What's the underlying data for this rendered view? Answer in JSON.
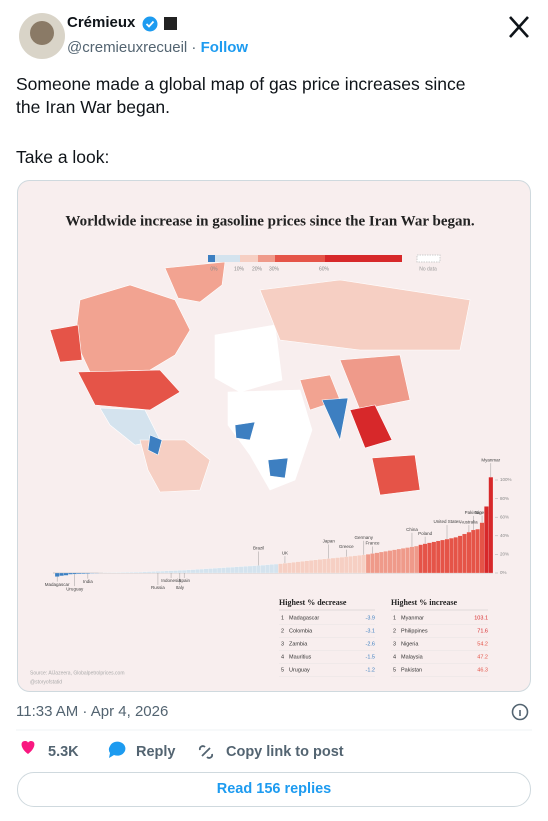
{
  "author": {
    "name": "Crémieux",
    "handle": "@cremieuxrecueil",
    "follow": "Follow"
  },
  "post": {
    "paragraphs": [
      [
        "Someone made a global map of gas price increases since",
        "the Iran War began."
      ],
      [
        "Take a look:"
      ]
    ]
  },
  "chart_data": {
    "type": "bar",
    "title": "Worldwide increase in gasoline prices since the Iran War began.",
    "legend": {
      "items": [
        {
          "value": 0,
          "label": "0%"
        },
        {
          "value": 10,
          "label": "10%"
        },
        {
          "value": 20,
          "label": "20%"
        },
        {
          "value": 30,
          "label": "30%"
        },
        {
          "value": 60,
          "label": "60%"
        }
      ],
      "no_data": "No data"
    },
    "bin_colors": [
      "#3d7fc1",
      "#d4e3ee",
      "#f6cfc3",
      "#ef9a8a",
      "#e55448",
      "#d7282a"
    ],
    "categories": [
      "Madagascar",
      null,
      null,
      null,
      "Uruguay",
      null,
      null,
      "India",
      null,
      null,
      null,
      null,
      null,
      null,
      null,
      null,
      null,
      null,
      null,
      null,
      null,
      null,
      null,
      "Russia",
      null,
      null,
      "Indonesia",
      null,
      "Italy",
      "Spain",
      null,
      null,
      null,
      null,
      null,
      null,
      null,
      null,
      null,
      null,
      null,
      null,
      null,
      null,
      null,
      null,
      "Brazil",
      null,
      null,
      null,
      null,
      null,
      "UK",
      null,
      null,
      null,
      null,
      null,
      null,
      null,
      null,
      null,
      "Japan",
      null,
      null,
      null,
      "Greece",
      null,
      null,
      null,
      "Germany",
      null,
      "France",
      null,
      null,
      null,
      null,
      null,
      null,
      null,
      null,
      "China",
      null,
      null,
      "Poland",
      null,
      null,
      null,
      null,
      "United States",
      null,
      null,
      null,
      null,
      "Australia",
      "Pakistan",
      null,
      "Nigeria",
      null,
      "Myanmar"
    ],
    "values": [
      -3.9,
      -3.1,
      -2.6,
      -1.5,
      -1.2,
      -1.0,
      -0.9,
      -0.7,
      -0.5,
      -0.3,
      0.1,
      0.2,
      0.3,
      0.4,
      0.5,
      0.6,
      0.7,
      0.8,
      0.9,
      1.0,
      1.2,
      1.4,
      1.6,
      1.8,
      2.0,
      2.2,
      2.4,
      2.6,
      2.8,
      3.0,
      3.3,
      3.6,
      3.9,
      4.2,
      4.5,
      4.8,
      5.1,
      5.4,
      5.7,
      6.0,
      6.3,
      6.6,
      6.9,
      7.2,
      7.5,
      7.8,
      8.1,
      8.4,
      8.8,
      9.2,
      9.6,
      10.1,
      10.6,
      11.1,
      11.6,
      12.1,
      12.6,
      13.1,
      13.6,
      14.1,
      14.6,
      15.1,
      15.6,
      16.1,
      16.6,
      17.1,
      17.6,
      18.1,
      18.6,
      19.1,
      19.6,
      20.2,
      21,
      21.8,
      22.6,
      23.4,
      24.2,
      25,
      25.8,
      26.6,
      27.4,
      28.2,
      29,
      30.5,
      31.5,
      32.5,
      33.5,
      34.5,
      35.5,
      36.5,
      37.5,
      38.5,
      40,
      42,
      44,
      46.3,
      47.2,
      54.2,
      71.6,
      103.1
    ],
    "ylim": [
      -5,
      105
    ],
    "yticks": [
      {
        "value": 0,
        "label": "0%"
      },
      {
        "value": 20,
        "label": "20%"
      },
      {
        "value": 40,
        "label": "40%"
      },
      {
        "value": 60,
        "label": "60%"
      },
      {
        "value": 80,
        "label": "80%"
      },
      {
        "value": 100,
        "label": "100%"
      }
    ]
  },
  "tables": [
    {
      "title": "Highest % decrease",
      "rows": [
        [
          "1",
          "Madagascar",
          -3.9
        ],
        [
          "2",
          "Colombia",
          -3.1
        ],
        [
          "3",
          "Zambia",
          -2.6
        ],
        [
          "4",
          "Mauritius",
          -1.5
        ],
        [
          "5",
          "Uruguay",
          -1.2
        ]
      ]
    },
    {
      "title": "Highest % increase",
      "rows": [
        [
          "1",
          "Myanmar",
          103.1
        ],
        [
          "2",
          "Philippines",
          71.6
        ],
        [
          "3",
          "Nigeria",
          54.2
        ],
        [
          "4",
          "Malaysia",
          47.2
        ],
        [
          "5",
          "Pakistan",
          46.3
        ]
      ]
    }
  ],
  "source": "Source: AlJazeera, Globalpetrolprices.com",
  "credit": "@storyofstatid",
  "timestamp": "11:33 AM · Apr 4, 2026",
  "actions": {
    "likes": "5.3K",
    "reply": "Reply",
    "copy_link": "Copy link to post"
  },
  "replies_button": "Read 156 replies"
}
